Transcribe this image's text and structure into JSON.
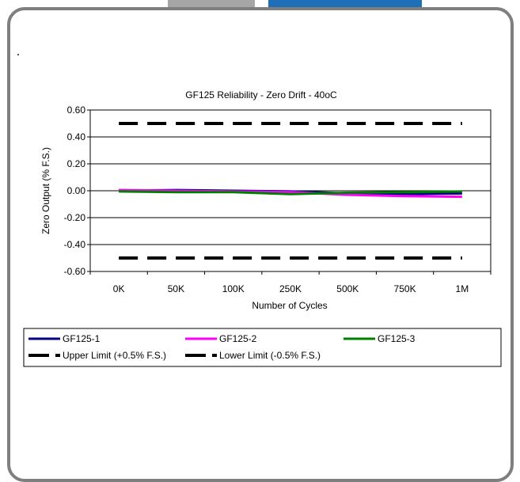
{
  "chart_data": {
    "type": "line",
    "title": "GF125 Reliability - Zero Drift - 40oC",
    "xlabel": "Number of Cycles",
    "ylabel": "Zero Output (% F.S.)",
    "categories": [
      "0K",
      "50K",
      "100K",
      "250K",
      "500K",
      "750K",
      "1M"
    ],
    "ylim": [
      -0.6,
      0.6
    ],
    "yticks": [
      0.6,
      0.4,
      0.2,
      0.0,
      -0.2,
      -0.4,
      -0.6
    ],
    "ytick_labels": [
      "0.60",
      "0.40",
      "0.20",
      "0.00",
      "-0.20",
      "-0.40",
      "-0.60"
    ],
    "grid": true,
    "legend_position": "bottom",
    "series": [
      {
        "name": "GF125-1",
        "color": "#000080",
        "dash": "solid",
        "values": [
          0.0,
          0.005,
          0.0,
          -0.005,
          -0.02,
          -0.025,
          -0.02
        ]
      },
      {
        "name": "GF125-2",
        "color": "#ff00ff",
        "dash": "solid",
        "values": [
          0.005,
          0.0,
          -0.005,
          -0.01,
          -0.03,
          -0.04,
          -0.045
        ]
      },
      {
        "name": "GF125-3",
        "color": "#008000",
        "dash": "solid",
        "values": [
          -0.005,
          -0.01,
          -0.01,
          -0.025,
          -0.015,
          -0.01,
          -0.005
        ]
      },
      {
        "name": "Upper Limit (+0.5% F.S.)",
        "color": "#000000",
        "dash": "dashed",
        "values": [
          0.5,
          0.5,
          0.5,
          0.5,
          0.5,
          0.5,
          0.5
        ]
      },
      {
        "name": "Lower Limit (-0.5% F.S.)",
        "color": "#000000",
        "dash": "dashed",
        "values": [
          -0.5,
          -0.5,
          -0.5,
          -0.5,
          -0.5,
          -0.5,
          -0.5
        ]
      }
    ]
  }
}
